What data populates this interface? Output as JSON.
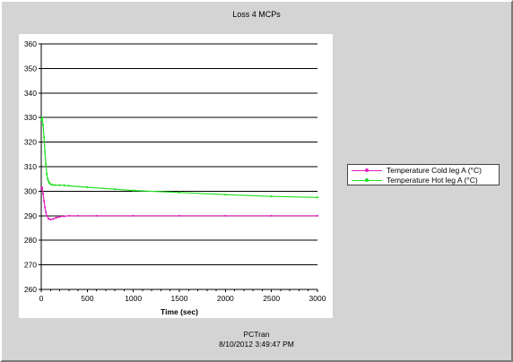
{
  "window": {
    "title": "Loss 4 MCPs",
    "footer_app": "PCTran",
    "footer_timestamp": "8/10/2012 3:49:47 PM"
  },
  "chart_data": {
    "type": "line",
    "title": "Loss 4 MCPs",
    "xlabel": "Time (sec)",
    "ylabel": "",
    "xlim": [
      0,
      3000
    ],
    "ylim": [
      260,
      360
    ],
    "x_ticks": [
      "0",
      "500",
      "1000",
      "1500",
      "2000",
      "2500",
      "3000"
    ],
    "y_ticks": [
      "260",
      "270",
      "280",
      "290",
      "300",
      "310",
      "320",
      "330",
      "340",
      "350",
      "360"
    ],
    "grid": "horizontal",
    "legend_position": "right",
    "series": [
      {
        "name": "Temperature Cold leg A (°C)",
        "color": "#e020c0",
        "x": [
          0,
          10,
          20,
          30,
          40,
          50,
          60,
          80,
          100,
          130,
          160,
          200,
          250,
          300,
          400,
          600,
          1000,
          1500,
          2000,
          2500,
          3000
        ],
        "y": [
          301,
          301.5,
          299,
          296,
          293.5,
          291.5,
          290,
          288.8,
          288.5,
          288.7,
          289.2,
          289.6,
          289.8,
          290,
          290,
          290,
          290,
          290,
          290,
          290,
          290
        ]
      },
      {
        "name": "Temperature Hot leg A (°C)",
        "color": "#20e020",
        "x": [
          0,
          10,
          20,
          30,
          40,
          50,
          60,
          70,
          80,
          90,
          100,
          120,
          150,
          200,
          250,
          300,
          500,
          800,
          1000,
          1500,
          2000,
          2500,
          3000
        ],
        "y": [
          329,
          330,
          327,
          322,
          316,
          311,
          307,
          305,
          304,
          303.3,
          302.9,
          302.6,
          302.5,
          302.5,
          302.4,
          302.2,
          301.6,
          300.8,
          300.3,
          299.5,
          298.6,
          297.9,
          297.5
        ]
      }
    ]
  }
}
